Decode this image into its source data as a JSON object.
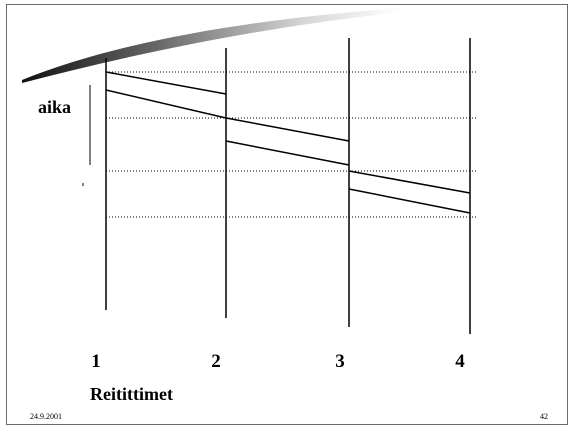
{
  "axis": {
    "label": "aika"
  },
  "routers": {
    "title": "Reitittimet",
    "labels": [
      "1",
      "2",
      "3",
      "4"
    ]
  },
  "footer": {
    "date": "24.9.2001",
    "page": "42"
  },
  "colors": {
    "line": "#000000",
    "frame": "#6b6b6b",
    "swoosh_dark": "#1a1a1a",
    "swoosh_light": "#ffffff"
  }
}
